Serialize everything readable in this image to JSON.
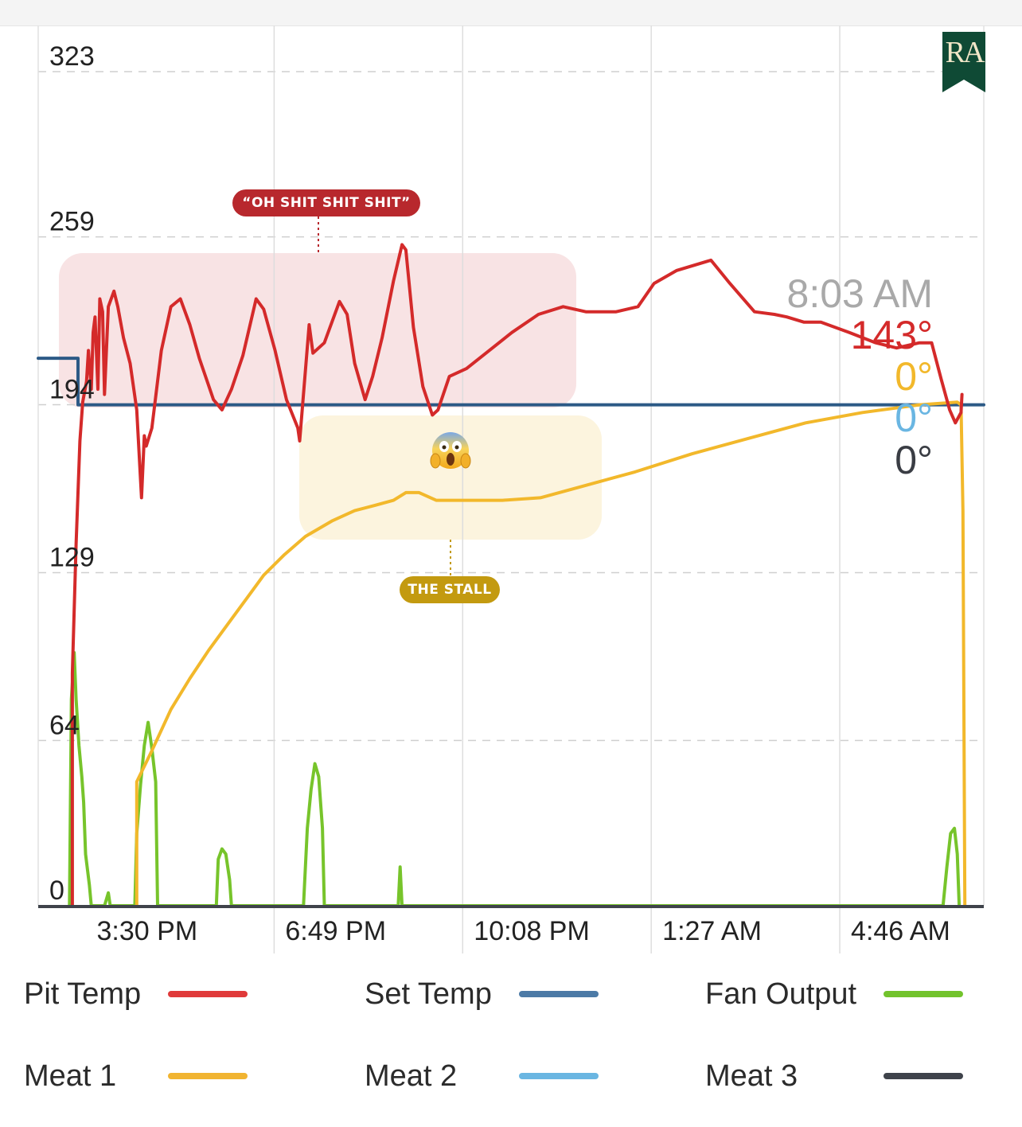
{
  "chart_data": {
    "type": "line",
    "y_ticks": [
      "323",
      "259",
      "194",
      "129",
      "64",
      "0"
    ],
    "y_tick_values": [
      323,
      259,
      194,
      129,
      64,
      0
    ],
    "ylim": [
      0,
      323
    ],
    "x_ticks": [
      "3:30 PM",
      "6:49 PM",
      "10:08 PM",
      "1:27 AM",
      "4:46 AM"
    ],
    "x_tick_minutes": [
      0,
      199,
      398,
      597,
      796
    ],
    "xlim_minutes": [
      -50,
      948
    ],
    "grid": true,
    "cursor": {
      "time_label": "8:03 AM",
      "minute": 993,
      "readouts": [
        {
          "series": "pit",
          "text": "143°"
        },
        {
          "series": "meat1",
          "text": "0°"
        },
        {
          "series": "meat2",
          "text": "0°"
        },
        {
          "series": "meat3",
          "text": "0°"
        }
      ]
    },
    "series": [
      {
        "key": "pit",
        "name": "Pit Temp",
        "color": "#d42a2a",
        "points": [
          [
            -14,
            0
          ],
          [
            -14,
            90
          ],
          [
            -10,
            140
          ],
          [
            -6,
            180
          ],
          [
            -3,
            195
          ],
          [
            1,
            203
          ],
          [
            3,
            215
          ],
          [
            6,
            200
          ],
          [
            8,
            222
          ],
          [
            10,
            228
          ],
          [
            13,
            200
          ],
          [
            15,
            235
          ],
          [
            18,
            230
          ],
          [
            20,
            198
          ],
          [
            24,
            232
          ],
          [
            30,
            238
          ],
          [
            34,
            232
          ],
          [
            40,
            220
          ],
          [
            47,
            210
          ],
          [
            54,
            192
          ],
          [
            59,
            158
          ],
          [
            62,
            182
          ],
          [
            64,
            178
          ],
          [
            70,
            185
          ],
          [
            80,
            215
          ],
          [
            90,
            232
          ],
          [
            100,
            235
          ],
          [
            110,
            225
          ],
          [
            120,
            212
          ],
          [
            135,
            196
          ],
          [
            144,
            192
          ],
          [
            154,
            200
          ],
          [
            166,
            213
          ],
          [
            180,
            235
          ],
          [
            188,
            231
          ],
          [
            200,
            215
          ],
          [
            212,
            196
          ],
          [
            224,
            185
          ],
          [
            226,
            180
          ],
          [
            236,
            225
          ],
          [
            240,
            214
          ],
          [
            252,
            218
          ],
          [
            268,
            234
          ],
          [
            276,
            229
          ],
          [
            284,
            210
          ],
          [
            295,
            196
          ],
          [
            303,
            205
          ],
          [
            313,
            220
          ],
          [
            325,
            242
          ],
          [
            334,
            256
          ],
          [
            338,
            254
          ],
          [
            346,
            224
          ],
          [
            356,
            201
          ],
          [
            366,
            190
          ],
          [
            372,
            192
          ],
          [
            384,
            205
          ],
          [
            402,
            208
          ],
          [
            426,
            215
          ],
          [
            450,
            222
          ],
          [
            478,
            229
          ],
          [
            504,
            232
          ],
          [
            528,
            230
          ],
          [
            560,
            230
          ],
          [
            583,
            232
          ],
          [
            600,
            241
          ],
          [
            624,
            246
          ],
          [
            660,
            250
          ],
          [
            680,
            241
          ],
          [
            706,
            230
          ],
          [
            727,
            229
          ],
          [
            740,
            228
          ],
          [
            758,
            226
          ],
          [
            776,
            226
          ],
          [
            806,
            222
          ],
          [
            834,
            218
          ],
          [
            856,
            216
          ],
          [
            880,
            218
          ],
          [
            893,
            218
          ],
          [
            903,
            204
          ],
          [
            912,
            192
          ],
          [
            918,
            187
          ],
          [
            924,
            191
          ],
          [
            925,
            198
          ]
        ]
      },
      {
        "key": "set",
        "name": "Set Temp",
        "color": "#2c5a86",
        "points": [
          [
            -50,
            212
          ],
          [
            -8,
            212
          ],
          [
            -8,
            194
          ],
          [
            948,
            194
          ]
        ]
      },
      {
        "key": "meat1",
        "name": "Meat 1",
        "color": "#f2b82b",
        "points": [
          [
            54,
            0
          ],
          [
            54,
            48
          ],
          [
            70,
            60
          ],
          [
            90,
            76
          ],
          [
            110,
            88
          ],
          [
            130,
            99
          ],
          [
            150,
            109
          ],
          [
            170,
            119
          ],
          [
            188,
            128
          ],
          [
            210,
            136
          ],
          [
            232,
            143
          ],
          [
            260,
            149
          ],
          [
            284,
            153
          ],
          [
            305,
            155
          ],
          [
            325,
            157
          ],
          [
            338,
            160
          ],
          [
            352,
            160
          ],
          [
            370,
            157
          ],
          [
            400,
            157
          ],
          [
            440,
            157
          ],
          [
            480,
            158
          ],
          [
            520,
            162
          ],
          [
            580,
            168
          ],
          [
            640,
            175
          ],
          [
            700,
            181
          ],
          [
            760,
            187
          ],
          [
            820,
            191
          ],
          [
            880,
            194
          ],
          [
            920,
            195
          ],
          [
            924,
            194
          ],
          [
            926,
            153
          ],
          [
            928,
            0
          ]
        ]
      },
      {
        "key": "fan",
        "name": "Fan Output",
        "color": "#77c42b",
        "points": [
          [
            -17,
            0
          ],
          [
            -15,
            80
          ],
          [
            -12,
            98
          ],
          [
            -10,
            80
          ],
          [
            -7,
            62
          ],
          [
            -4,
            50
          ],
          [
            -2,
            40
          ],
          [
            0,
            20
          ],
          [
            4,
            8
          ],
          [
            6,
            0
          ],
          [
            20,
            0
          ],
          [
            24,
            5
          ],
          [
            26,
            0
          ],
          [
            52,
            0
          ],
          [
            54,
            28
          ],
          [
            58,
            47
          ],
          [
            62,
            62
          ],
          [
            66,
            71
          ],
          [
            70,
            61
          ],
          [
            74,
            48
          ],
          [
            76,
            0
          ],
          [
            138,
            0
          ],
          [
            140,
            18
          ],
          [
            144,
            22
          ],
          [
            148,
            20
          ],
          [
            152,
            10
          ],
          [
            154,
            0
          ],
          [
            230,
            0
          ],
          [
            234,
            30
          ],
          [
            238,
            45
          ],
          [
            242,
            55
          ],
          [
            246,
            50
          ],
          [
            250,
            30
          ],
          [
            252,
            0
          ],
          [
            330,
            0
          ],
          [
            332,
            15
          ],
          [
            334,
            0
          ],
          [
            905,
            0
          ],
          [
            909,
            15
          ],
          [
            913,
            28
          ],
          [
            917,
            30
          ],
          [
            920,
            20
          ],
          [
            922,
            0
          ]
        ]
      },
      {
        "key": "meat2",
        "name": "Meat 2",
        "color": "#6ab6e2",
        "points": []
      },
      {
        "key": "meat3",
        "name": "Meat 3",
        "color": "#3a3d44",
        "points": []
      }
    ],
    "annotations": [
      {
        "key": "panic",
        "text": "“OH SHIT SHIT SHIT”",
        "color": "#b8282d"
      },
      {
        "key": "stall",
        "text": "THE STALL",
        "color": "#c39a10"
      }
    ]
  },
  "legend": {
    "items": [
      {
        "label": "Pit Temp",
        "color": "#e03a3a"
      },
      {
        "label": "Set Temp",
        "color": "#4c7aa6"
      },
      {
        "label": "Fan Output",
        "color": "#72c32c"
      },
      {
        "label": "Meat 1",
        "color": "#f1b431"
      },
      {
        "label": "Meat 2",
        "color": "#6ab6e2"
      },
      {
        "label": "Meat 3",
        "color": "#3f434b"
      }
    ]
  },
  "logo": {
    "text": "RA",
    "color": "#0f4a35"
  },
  "emoji": {
    "name": "screaming-face-emoji"
  }
}
